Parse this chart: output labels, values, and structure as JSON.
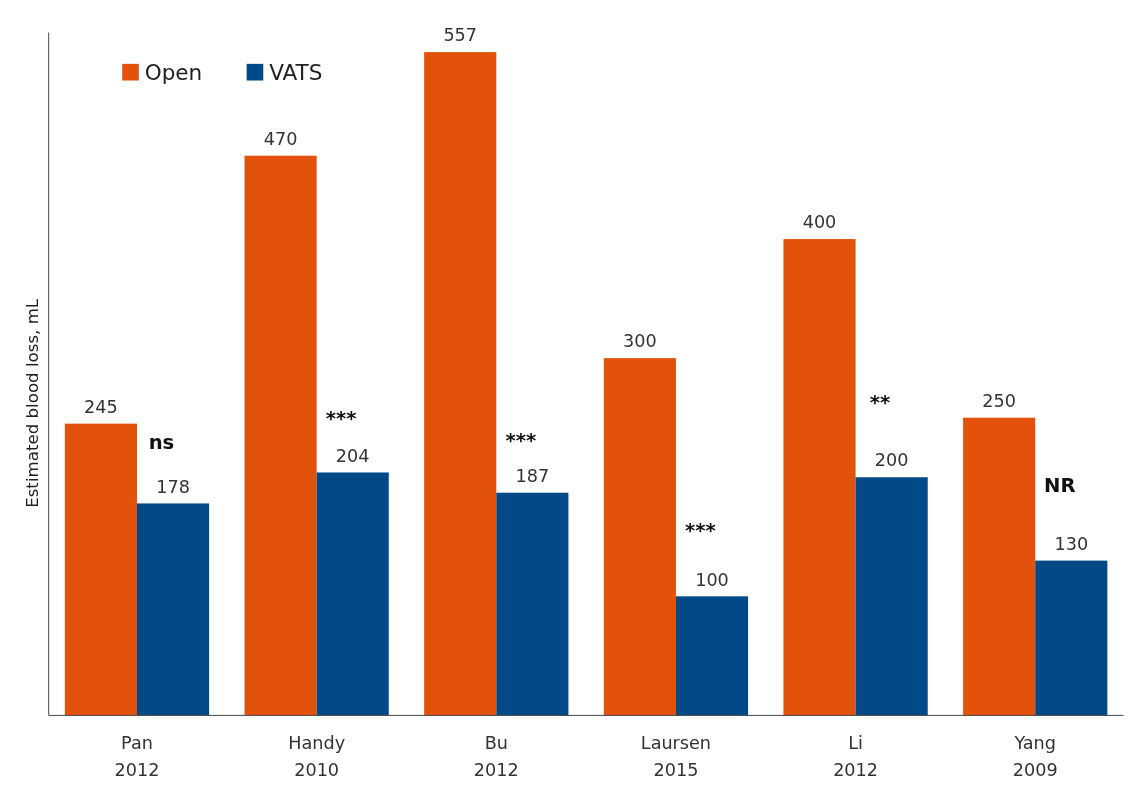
{
  "chart_data": {
    "type": "bar",
    "ylabel": "Estimated blood loss, mL",
    "relative": false,
    "categories": [
      "Pan\n2012",
      "Handy\n2010",
      "Bu\n2012",
      "Laursen\n2015",
      "Li\n2012",
      "Yang\n2009"
    ],
    "series": [
      {
        "name": "Open",
        "color": "#e2520a",
        "values": [
          245,
          470,
          557,
          300,
          400,
          250
        ]
      },
      {
        "name": "VATS",
        "color": "#014a87",
        "values": [
          178,
          204,
          187,
          100,
          200,
          130
        ]
      }
    ],
    "data_labels": true,
    "legend": "top left",
    "annotations": [
      {
        "text": "ns",
        "x": "Pan\n2012",
        "y": 224
      },
      {
        "text": "***",
        "x": "Handy\n2010",
        "y": 244
      },
      {
        "text": "***",
        "x": "Bu\n2012",
        "y": 225
      },
      {
        "text": "***",
        "x": "Laursen\n2015",
        "y": 150
      },
      {
        "text": "**",
        "x": "Li\n2012",
        "y": 257
      },
      {
        "text": "NR",
        "x": "Yang\n2009",
        "y": 188
      }
    ]
  }
}
